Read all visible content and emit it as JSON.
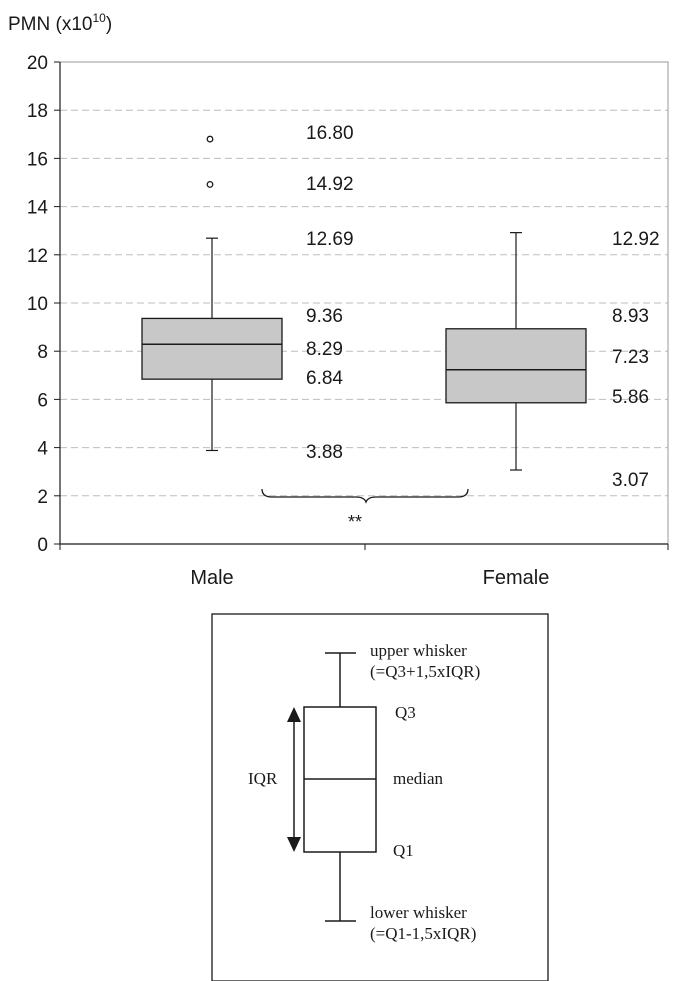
{
  "chart_data": {
    "type": "box",
    "ylabel": "PMN (x10",
    "ylabel_exp": "10",
    "ylabel_close": ")",
    "ylim": [
      0,
      20
    ],
    "yticks": [
      0,
      2,
      4,
      6,
      8,
      10,
      12,
      14,
      16,
      18,
      20
    ],
    "grid": "horizontal dashed",
    "categories": [
      "Male",
      "Female"
    ],
    "boxes": [
      {
        "name": "Male",
        "lower_whisker": 3.88,
        "q1": 6.84,
        "median": 8.29,
        "q3": 9.36,
        "upper_whisker": 12.69,
        "outliers": [
          14.92,
          16.8
        ],
        "value_labels": [
          "16.80",
          "14.92",
          "12.69",
          "9.36",
          "8.29",
          "6.84",
          "3.88"
        ]
      },
      {
        "name": "Female",
        "lower_whisker": 3.07,
        "q1": 5.86,
        "median": 7.23,
        "q3": 8.93,
        "upper_whisker": 12.92,
        "outliers": [],
        "value_labels": [
          "12.92",
          "8.93",
          "7.23",
          "5.86",
          "3.07"
        ]
      }
    ],
    "significance": "**",
    "colors": {
      "box_fill": "#c8c8c8",
      "grid": "#bdbdbd",
      "stroke": "#1a1a1a"
    }
  },
  "legend": {
    "upper_whisker": "upper whisker",
    "upper_formula": "(=Q3+1,5xIQR)",
    "q3": "Q3",
    "iqr": "IQR",
    "median": "median",
    "q1": "Q1",
    "lower_whisker": "lower whisker",
    "lower_formula": "(=Q1-1,5xIQR)"
  }
}
